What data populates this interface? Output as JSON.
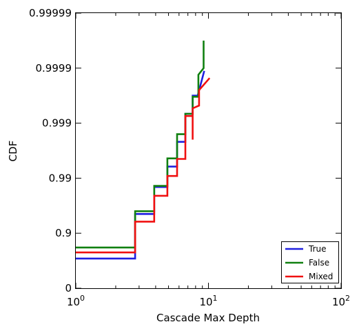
{
  "chart_data": {
    "type": "line",
    "xlabel": "Cascade Max Depth",
    "ylabel": "CDF",
    "xscale": "log",
    "yscale": "logit-style",
    "xlim": [
      1,
      100
    ],
    "xticks": [
      {
        "value": 1,
        "base": "10",
        "exp": "0"
      },
      {
        "value": 10,
        "base": "10",
        "exp": "1"
      },
      {
        "value": 100,
        "base": "10",
        "exp": "2"
      }
    ],
    "yticks": [
      "0",
      "0.9",
      "0.99",
      "0.999",
      "0.9999",
      "0.99999"
    ],
    "ylim_decades": [
      0,
      5
    ],
    "grid": false,
    "legend_position": "lower right",
    "series": [
      {
        "name": "True",
        "color": "#1f1fe0",
        "points": [
          [
            1,
            0.54
          ],
          [
            2.8,
            0.54
          ],
          [
            2.8,
            1.35
          ],
          [
            3.9,
            1.35
          ],
          [
            3.9,
            1.84
          ],
          [
            4.9,
            1.84
          ],
          [
            4.9,
            2.21
          ],
          [
            5.8,
            2.21
          ],
          [
            5.8,
            2.66
          ],
          [
            6.7,
            2.66
          ],
          [
            6.7,
            3.17
          ],
          [
            7.6,
            3.17
          ],
          [
            7.6,
            3.5
          ],
          [
            8.3,
            3.5
          ],
          [
            9.3,
            3.95
          ]
        ]
      },
      {
        "name": "False",
        "color": "#108010",
        "points": [
          [
            1,
            0.74
          ],
          [
            2.8,
            0.74
          ],
          [
            2.8,
            1.4
          ],
          [
            3.9,
            1.4
          ],
          [
            3.9,
            1.86
          ],
          [
            4.9,
            1.86
          ],
          [
            4.9,
            2.36
          ],
          [
            5.8,
            2.36
          ],
          [
            5.8,
            2.8
          ],
          [
            6.7,
            2.8
          ],
          [
            6.7,
            3.17
          ],
          [
            7.6,
            3.17
          ],
          [
            7.6,
            3.48
          ],
          [
            8.4,
            3.48
          ],
          [
            8.4,
            3.88
          ],
          [
            9.2,
            4.0
          ],
          [
            9.2,
            4.5
          ]
        ]
      },
      {
        "name": "Mixed",
        "color": "#f01010",
        "points": [
          [
            1,
            0.65
          ],
          [
            2.8,
            0.65
          ],
          [
            2.8,
            1.21
          ],
          [
            3.9,
            1.21
          ],
          [
            3.9,
            1.68
          ],
          [
            4.9,
            1.68
          ],
          [
            4.9,
            2.04
          ],
          [
            5.8,
            2.04
          ],
          [
            5.8,
            2.35
          ],
          [
            6.7,
            2.35
          ],
          [
            6.7,
            3.13
          ],
          [
            7.6,
            3.13
          ],
          [
            7.6,
            2.7
          ],
          [
            7.6,
            3.27
          ],
          [
            8.5,
            3.32
          ],
          [
            8.5,
            3.6
          ],
          [
            10.2,
            3.82
          ]
        ]
      }
    ]
  }
}
